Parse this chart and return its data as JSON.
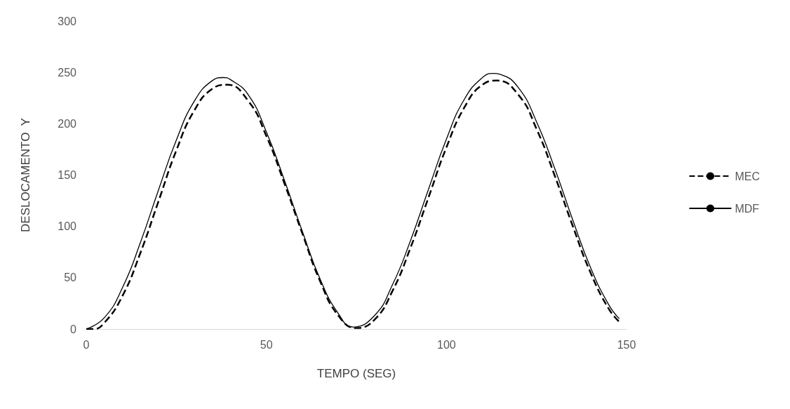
{
  "chart_data": {
    "type": "line",
    "xlabel": "TEMPO (SEG)",
    "ylabel": "DESLOCAMENTO  Y",
    "xlim": [
      0,
      150
    ],
    "xticks": [
      0,
      50,
      100,
      150
    ],
    "ylim": [
      0,
      300
    ],
    "yticks": [
      0,
      50,
      100,
      150,
      200,
      250,
      300
    ],
    "grid": false,
    "legend": "right",
    "marker": "none",
    "series": [
      {
        "name": "MEC",
        "color": "#000000",
        "line_style": "dashed",
        "x": [
          0,
          2,
          5,
          10,
          15,
          20,
          25,
          30,
          35,
          39,
          45,
          50,
          55,
          60,
          65,
          70,
          75,
          80,
          85,
          90,
          95,
          100,
          105,
          110,
          114,
          120,
          125,
          130,
          135,
          140,
          145,
          148
        ],
        "values": [
          0,
          0,
          6,
          32,
          74,
          124,
          174,
          213,
          234,
          238,
          222,
          188,
          142,
          93,
          46,
          13,
          1,
          9,
          37,
          79,
          128,
          177,
          216,
          238,
          242,
          228,
          195,
          150,
          101,
          55,
          20,
          7
        ]
      },
      {
        "name": "MDF",
        "color": "#000000",
        "line_style": "solid",
        "x": [
          0,
          5,
          10,
          15,
          20,
          25,
          30,
          35,
          38,
          40,
          45,
          50,
          55,
          60,
          65,
          70,
          74,
          80,
          85,
          90,
          95,
          100,
          105,
          110,
          113,
          115,
          120,
          125,
          130,
          135,
          140,
          145,
          148
        ],
        "values": [
          0,
          11,
          40,
          84,
          135,
          184,
          222,
          242,
          245,
          243,
          228,
          192,
          145,
          95,
          48,
          15,
          2,
          13,
          43,
          86,
          136,
          185,
          224,
          245,
          249,
          248,
          235,
          202,
          157,
          107,
          60,
          24,
          10
        ]
      }
    ]
  }
}
